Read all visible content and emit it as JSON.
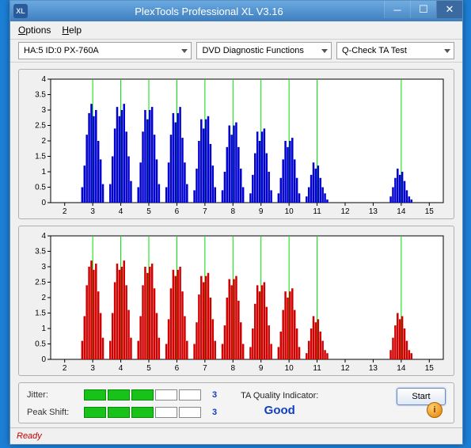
{
  "window": {
    "title": "PlexTools Professional XL V3.16",
    "app_icon_text": "XL"
  },
  "menu": {
    "options": "Options",
    "help": "Help"
  },
  "toolbar": {
    "device": "HA:5 ID:0  PX-760A",
    "func": "DVD Diagnostic Functions",
    "test": "Q-Check TA Test"
  },
  "chart": {
    "ylim": [
      0,
      4
    ],
    "yticks": [
      0,
      0.5,
      1,
      1.5,
      2,
      2.5,
      3,
      3.5,
      4
    ],
    "xlim": [
      1.5,
      15.5
    ],
    "xticks": [
      2,
      3,
      4,
      5,
      6,
      7,
      8,
      9,
      10,
      11,
      12,
      13,
      14,
      15
    ],
    "vlines": [
      3,
      4,
      5,
      6,
      7,
      8,
      9,
      10,
      11,
      14
    ],
    "vline_color": "#00e000",
    "bg": "#ffffff",
    "axis_color": "#000000",
    "top_color": "#0000d0",
    "bot_color": "#d00000",
    "groups_top": [
      {
        "c": 3,
        "h": [
          0.5,
          1.2,
          2.2,
          2.9,
          3.2,
          2.8,
          3.0,
          2.0,
          1.4,
          0.6
        ]
      },
      {
        "c": 4,
        "h": [
          0.6,
          1.5,
          2.4,
          3.1,
          2.8,
          3.0,
          3.2,
          2.3,
          1.5,
          0.7
        ]
      },
      {
        "c": 5,
        "h": [
          0.5,
          1.3,
          2.3,
          3.0,
          2.7,
          3.0,
          3.1,
          2.2,
          1.4,
          0.6
        ]
      },
      {
        "c": 6,
        "h": [
          0.5,
          1.3,
          2.2,
          2.9,
          2.6,
          2.9,
          3.1,
          2.1,
          1.3,
          0.6
        ]
      },
      {
        "c": 7,
        "h": [
          0.4,
          1.1,
          2.0,
          2.7,
          2.4,
          2.7,
          2.8,
          1.9,
          1.2,
          0.5
        ]
      },
      {
        "c": 8,
        "h": [
          0.4,
          1.0,
          1.8,
          2.5,
          2.2,
          2.5,
          2.6,
          1.8,
          1.1,
          0.5
        ]
      },
      {
        "c": 9,
        "h": [
          0.3,
          0.9,
          1.6,
          2.3,
          2.0,
          2.3,
          2.4,
          1.6,
          1.0,
          0.4
        ]
      },
      {
        "c": 10,
        "h": [
          0.3,
          0.8,
          1.4,
          2.0,
          1.8,
          2.0,
          2.1,
          1.4,
          0.8,
          0.3
        ]
      },
      {
        "c": 11,
        "h": [
          0.2,
          0.5,
          0.9,
          1.3,
          1.1,
          1.2,
          0.8,
          0.5,
          0.3,
          0.1
        ]
      },
      {
        "c": 14,
        "h": [
          0.2,
          0.5,
          0.8,
          1.1,
          0.9,
          1.0,
          0.7,
          0.4,
          0.2,
          0.1
        ]
      }
    ],
    "groups_bot": [
      {
        "c": 3,
        "h": [
          0.6,
          1.4,
          2.4,
          3.0,
          3.2,
          2.9,
          3.1,
          2.2,
          1.5,
          0.7
        ]
      },
      {
        "c": 4,
        "h": [
          0.6,
          1.5,
          2.5,
          3.1,
          2.9,
          3.0,
          3.2,
          2.4,
          1.6,
          0.7
        ]
      },
      {
        "c": 5,
        "h": [
          0.6,
          1.4,
          2.4,
          3.0,
          2.8,
          3.0,
          3.1,
          2.3,
          1.5,
          0.7
        ]
      },
      {
        "c": 6,
        "h": [
          0.5,
          1.3,
          2.3,
          2.9,
          2.7,
          2.9,
          3.0,
          2.2,
          1.4,
          0.6
        ]
      },
      {
        "c": 7,
        "h": [
          0.5,
          1.2,
          2.1,
          2.7,
          2.5,
          2.7,
          2.8,
          2.0,
          1.3,
          0.6
        ]
      },
      {
        "c": 8,
        "h": [
          0.5,
          1.1,
          2.0,
          2.6,
          2.4,
          2.6,
          2.7,
          1.9,
          1.2,
          0.5
        ]
      },
      {
        "c": 9,
        "h": [
          0.4,
          1.0,
          1.8,
          2.4,
          2.2,
          2.4,
          2.5,
          1.7,
          1.1,
          0.5
        ]
      },
      {
        "c": 10,
        "h": [
          0.4,
          0.9,
          1.6,
          2.2,
          2.0,
          2.2,
          2.3,
          1.6,
          1.0,
          0.4
        ]
      },
      {
        "c": 11,
        "h": [
          0.2,
          0.6,
          1.0,
          1.4,
          1.2,
          1.3,
          0.9,
          0.6,
          0.3,
          0.2
        ]
      },
      {
        "c": 14,
        "h": [
          0.3,
          0.7,
          1.1,
          1.5,
          1.3,
          1.4,
          1.0,
          0.6,
          0.3,
          0.2
        ]
      }
    ]
  },
  "metrics": {
    "jitter_label": "Jitter:",
    "jitter_filled": 3,
    "jitter_total": 5,
    "jitter_value": "3",
    "peak_label": "Peak Shift:",
    "peak_filled": 3,
    "peak_total": 5,
    "peak_value": "3"
  },
  "quality": {
    "label": "TA Quality Indicator:",
    "value": "Good"
  },
  "start_label": "Start",
  "status": "Ready"
}
